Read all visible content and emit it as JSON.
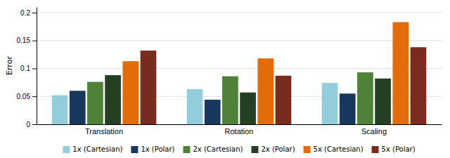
{
  "chart_data": {
    "type": "bar",
    "categories": [
      "Translation",
      "Rotation",
      "Scaling"
    ],
    "series": [
      {
        "name": "1x (Cartesian)",
        "color": "#92CDDC",
        "values": [
          0.052,
          0.063,
          0.074
        ]
      },
      {
        "name": "1x (Polar)",
        "color": "#17375E",
        "values": [
          0.06,
          0.044,
          0.055
        ]
      },
      {
        "name": "2x (Cartesian)",
        "color": "#4F8139",
        "values": [
          0.076,
          0.086,
          0.093
        ]
      },
      {
        "name": "2x (Polar)",
        "color": "#243F22",
        "values": [
          0.088,
          0.057,
          0.082
        ]
      },
      {
        "name": "5x (Cartesian)",
        "color": "#E36C0A",
        "values": [
          0.113,
          0.118,
          0.183
        ]
      },
      {
        "name": "5x (Polar)",
        "color": "#7B2B1D",
        "values": [
          0.132,
          0.087,
          0.138
        ]
      }
    ],
    "ylabel": "Error",
    "ylim": [
      0,
      0.21
    ],
    "yticks": [
      0,
      0.05,
      0.1,
      0.15,
      0.2
    ],
    "grid": true,
    "legend": "bottom"
  }
}
